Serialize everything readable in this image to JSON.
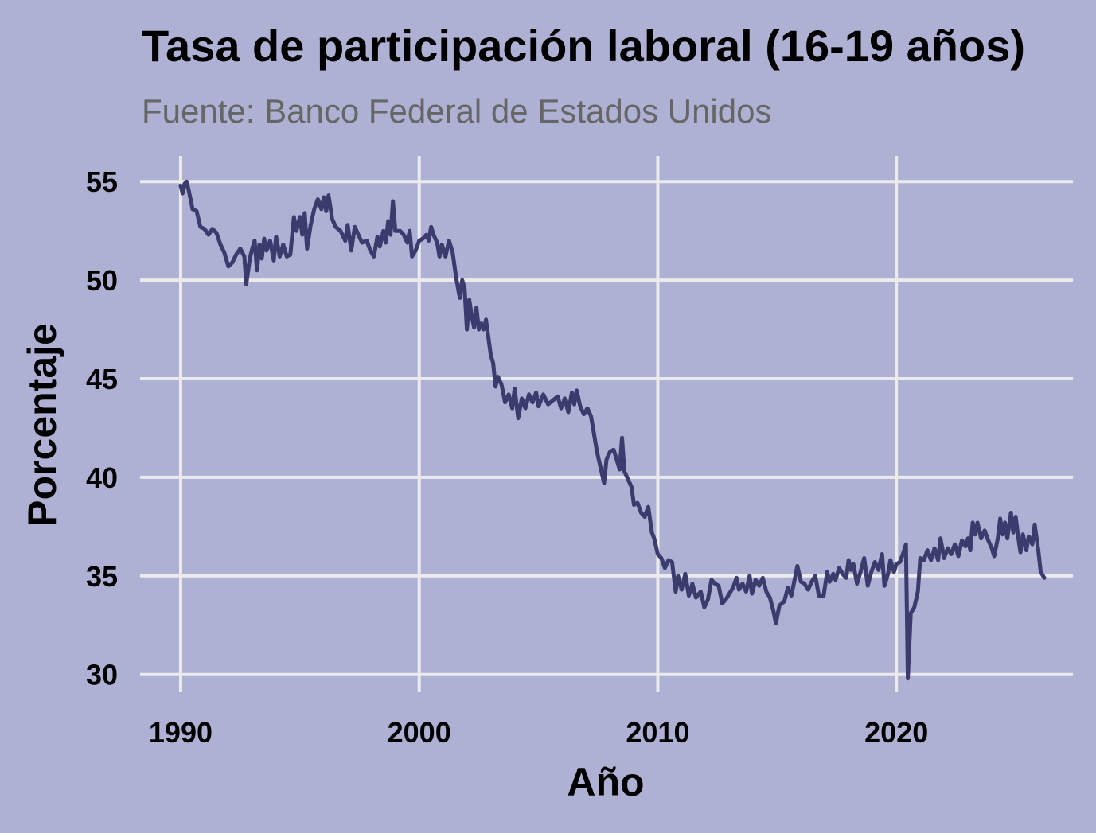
{
  "colors": {
    "background": "#AFB1D4",
    "grid": "#EBEBEB",
    "line": "#3B3B6D",
    "subtitle": "#666666"
  },
  "chart_data": {
    "type": "line",
    "title": "Tasa de participación laboral (16-19 años)",
    "subtitle": "Fuente: Banco Federal de Estados Unidos",
    "xlabel": "Año",
    "ylabel": "Porcentaje",
    "xlim": [
      1988.3,
      2027.4
    ],
    "ylim": [
      29.1,
      56.3
    ],
    "x_ticks": [
      1990,
      2000,
      2010,
      2020
    ],
    "y_ticks": [
      30,
      35,
      40,
      45,
      50,
      55
    ],
    "grid": true,
    "legend": "none",
    "series": [
      {
        "points": [
          [
            1990.0,
            54.8
          ],
          [
            1990.08,
            54.4
          ],
          [
            1990.17,
            54.9
          ],
          [
            1990.25,
            55.0
          ],
          [
            1990.33,
            54.6
          ],
          [
            1990.42,
            54.1
          ],
          [
            1990.5,
            53.6
          ],
          [
            1990.67,
            53.5
          ],
          [
            1990.83,
            52.7
          ],
          [
            1991.0,
            52.6
          ],
          [
            1991.17,
            52.3
          ],
          [
            1991.33,
            52.6
          ],
          [
            1991.5,
            52.4
          ],
          [
            1991.67,
            51.8
          ],
          [
            1991.83,
            51.4
          ],
          [
            1992.0,
            50.7
          ],
          [
            1992.17,
            50.9
          ],
          [
            1992.33,
            51.3
          ],
          [
            1992.5,
            51.6
          ],
          [
            1992.67,
            51.2
          ],
          [
            1992.75,
            49.8
          ],
          [
            1992.9,
            51.1
          ],
          [
            1993.0,
            51.6
          ],
          [
            1993.1,
            52.0
          ],
          [
            1993.2,
            50.5
          ],
          [
            1993.3,
            51.8
          ],
          [
            1993.4,
            51.1
          ],
          [
            1993.5,
            52.1
          ],
          [
            1993.6,
            51.5
          ],
          [
            1993.75,
            52.0
          ],
          [
            1993.9,
            51.0
          ],
          [
            1994.0,
            52.2
          ],
          [
            1994.15,
            51.2
          ],
          [
            1994.3,
            51.8
          ],
          [
            1994.45,
            51.2
          ],
          [
            1994.6,
            51.3
          ],
          [
            1994.75,
            53.2
          ],
          [
            1994.85,
            52.5
          ],
          [
            1995.0,
            53.2
          ],
          [
            1995.1,
            52.3
          ],
          [
            1995.2,
            53.4
          ],
          [
            1995.3,
            51.6
          ],
          [
            1995.45,
            52.8
          ],
          [
            1995.6,
            53.6
          ],
          [
            1995.75,
            54.1
          ],
          [
            1995.9,
            53.6
          ],
          [
            1996.0,
            54.2
          ],
          [
            1996.1,
            53.5
          ],
          [
            1996.2,
            54.3
          ],
          [
            1996.35,
            53.1
          ],
          [
            1996.5,
            52.7
          ],
          [
            1996.7,
            52.5
          ],
          [
            1996.9,
            52.0
          ],
          [
            1997.0,
            52.8
          ],
          [
            1997.15,
            51.5
          ],
          [
            1997.3,
            52.7
          ],
          [
            1997.45,
            52.3
          ],
          [
            1997.6,
            51.9
          ],
          [
            1997.8,
            52.0
          ],
          [
            1997.95,
            51.5
          ],
          [
            1998.1,
            51.2
          ],
          [
            1998.25,
            52.2
          ],
          [
            1998.35,
            51.7
          ],
          [
            1998.5,
            52.5
          ],
          [
            1998.6,
            51.9
          ],
          [
            1998.7,
            53.0
          ],
          [
            1998.8,
            52.3
          ],
          [
            1998.9,
            54.0
          ],
          [
            1999.0,
            52.5
          ],
          [
            1999.2,
            52.5
          ],
          [
            1999.35,
            52.3
          ],
          [
            1999.5,
            51.9
          ],
          [
            1999.6,
            52.5
          ],
          [
            1999.7,
            51.2
          ],
          [
            1999.85,
            51.5
          ],
          [
            2000.0,
            52.0
          ],
          [
            2000.15,
            52.1
          ],
          [
            2000.3,
            52.3
          ],
          [
            2000.4,
            52.0
          ],
          [
            2000.5,
            52.7
          ],
          [
            2000.6,
            52.3
          ],
          [
            2000.75,
            51.9
          ],
          [
            2000.85,
            51.2
          ],
          [
            2000.95,
            51.8
          ],
          [
            2001.1,
            51.2
          ],
          [
            2001.25,
            52.0
          ],
          [
            2001.4,
            51.4
          ],
          [
            2001.55,
            50.1
          ],
          [
            2001.7,
            49.1
          ],
          [
            2001.8,
            50.0
          ],
          [
            2001.9,
            49.6
          ],
          [
            2002.0,
            47.5
          ],
          [
            2002.1,
            49.0
          ],
          [
            2002.2,
            48.2
          ],
          [
            2002.3,
            47.6
          ],
          [
            2002.4,
            48.6
          ],
          [
            2002.5,
            47.5
          ],
          [
            2002.6,
            47.8
          ],
          [
            2002.7,
            47.5
          ],
          [
            2002.8,
            48.0
          ],
          [
            2002.9,
            47.1
          ],
          [
            2003.0,
            46.2
          ],
          [
            2003.1,
            45.8
          ],
          [
            2003.2,
            44.6
          ],
          [
            2003.3,
            45.1
          ],
          [
            2003.45,
            44.7
          ],
          [
            2003.6,
            43.8
          ],
          [
            2003.75,
            44.2
          ],
          [
            2003.9,
            43.5
          ],
          [
            2004.0,
            44.5
          ],
          [
            2004.15,
            43.0
          ],
          [
            2004.3,
            44.0
          ],
          [
            2004.45,
            43.5
          ],
          [
            2004.6,
            44.2
          ],
          [
            2004.75,
            43.8
          ],
          [
            2004.9,
            44.3
          ],
          [
            2005.0,
            43.6
          ],
          [
            2005.2,
            44.2
          ],
          [
            2005.4,
            43.7
          ],
          [
            2005.6,
            43.9
          ],
          [
            2005.8,
            44.1
          ],
          [
            2005.95,
            43.5
          ],
          [
            2006.1,
            44.0
          ],
          [
            2006.25,
            43.3
          ],
          [
            2006.4,
            44.3
          ],
          [
            2006.5,
            43.7
          ],
          [
            2006.6,
            44.4
          ],
          [
            2006.75,
            43.6
          ],
          [
            2006.9,
            43.2
          ],
          [
            2007.05,
            43.5
          ],
          [
            2007.2,
            43.1
          ],
          [
            2007.3,
            42.4
          ],
          [
            2007.45,
            41.3
          ],
          [
            2007.6,
            40.5
          ],
          [
            2007.75,
            39.7
          ],
          [
            2007.85,
            40.9
          ],
          [
            2008.0,
            41.3
          ],
          [
            2008.15,
            41.4
          ],
          [
            2008.3,
            40.8
          ],
          [
            2008.4,
            40.4
          ],
          [
            2008.5,
            42.0
          ],
          [
            2008.6,
            40.3
          ],
          [
            2008.75,
            39.9
          ],
          [
            2008.9,
            39.5
          ],
          [
            2009.0,
            38.6
          ],
          [
            2009.15,
            38.7
          ],
          [
            2009.3,
            38.2
          ],
          [
            2009.45,
            38.0
          ],
          [
            2009.6,
            38.5
          ],
          [
            2009.75,
            37.2
          ],
          [
            2009.85,
            36.9
          ],
          [
            2010.0,
            36.1
          ],
          [
            2010.15,
            35.9
          ],
          [
            2010.3,
            35.4
          ],
          [
            2010.45,
            35.8
          ],
          [
            2010.6,
            35.7
          ],
          [
            2010.75,
            34.2
          ],
          [
            2010.85,
            35.0
          ],
          [
            2011.0,
            34.3
          ],
          [
            2011.15,
            35.1
          ],
          [
            2011.3,
            34.0
          ],
          [
            2011.45,
            34.6
          ],
          [
            2011.6,
            33.9
          ],
          [
            2011.8,
            34.2
          ],
          [
            2011.95,
            33.4
          ],
          [
            2012.1,
            33.8
          ],
          [
            2012.25,
            34.8
          ],
          [
            2012.4,
            34.6
          ],
          [
            2012.55,
            34.5
          ],
          [
            2012.7,
            33.6
          ],
          [
            2012.85,
            33.8
          ],
          [
            2013.0,
            34.1
          ],
          [
            2013.15,
            34.4
          ],
          [
            2013.3,
            34.9
          ],
          [
            2013.4,
            34.3
          ],
          [
            2013.55,
            34.6
          ],
          [
            2013.7,
            34.2
          ],
          [
            2013.85,
            35.0
          ],
          [
            2013.95,
            34.1
          ],
          [
            2014.1,
            34.8
          ],
          [
            2014.25,
            34.5
          ],
          [
            2014.4,
            34.9
          ],
          [
            2014.55,
            34.2
          ],
          [
            2014.7,
            33.9
          ],
          [
            2014.85,
            33.2
          ],
          [
            2014.95,
            32.6
          ],
          [
            2015.1,
            33.5
          ],
          [
            2015.3,
            33.7
          ],
          [
            2015.45,
            34.4
          ],
          [
            2015.6,
            34.0
          ],
          [
            2015.75,
            34.9
          ],
          [
            2015.85,
            35.5
          ],
          [
            2016.0,
            34.7
          ],
          [
            2016.15,
            34.6
          ],
          [
            2016.3,
            34.3
          ],
          [
            2016.45,
            34.7
          ],
          [
            2016.6,
            35.0
          ],
          [
            2016.75,
            34.0
          ],
          [
            2016.95,
            34.0
          ],
          [
            2017.1,
            35.2
          ],
          [
            2017.2,
            34.7
          ],
          [
            2017.35,
            35.1
          ],
          [
            2017.45,
            34.8
          ],
          [
            2017.6,
            35.4
          ],
          [
            2017.75,
            35.1
          ],
          [
            2017.9,
            34.9
          ],
          [
            2018.0,
            35.8
          ],
          [
            2018.1,
            35.3
          ],
          [
            2018.2,
            35.6
          ],
          [
            2018.35,
            34.6
          ],
          [
            2018.5,
            35.2
          ],
          [
            2018.65,
            35.9
          ],
          [
            2018.8,
            34.5
          ],
          [
            2018.95,
            35.2
          ],
          [
            2019.1,
            35.7
          ],
          [
            2019.25,
            35.3
          ],
          [
            2019.4,
            36.1
          ],
          [
            2019.5,
            34.5
          ],
          [
            2019.65,
            35.1
          ],
          [
            2019.75,
            35.8
          ],
          [
            2019.9,
            35.2
          ],
          [
            2020.0,
            35.6
          ],
          [
            2020.15,
            35.7
          ],
          [
            2020.3,
            36.2
          ],
          [
            2020.4,
            36.6
          ],
          [
            2020.48,
            29.8
          ],
          [
            2020.6,
            33.1
          ],
          [
            2020.75,
            33.4
          ],
          [
            2020.9,
            34.2
          ],
          [
            2021.0,
            35.9
          ],
          [
            2021.15,
            35.8
          ],
          [
            2021.3,
            36.3
          ],
          [
            2021.45,
            35.8
          ],
          [
            2021.6,
            36.4
          ],
          [
            2021.75,
            35.8
          ],
          [
            2021.85,
            36.9
          ],
          [
            2022.0,
            35.9
          ],
          [
            2022.15,
            36.4
          ],
          [
            2022.3,
            36.1
          ],
          [
            2022.45,
            36.6
          ],
          [
            2022.6,
            36.0
          ],
          [
            2022.75,
            36.8
          ],
          [
            2022.9,
            36.5
          ],
          [
            2023.0,
            36.9
          ],
          [
            2023.1,
            36.3
          ],
          [
            2023.2,
            37.7
          ],
          [
            2023.3,
            37.1
          ],
          [
            2023.4,
            37.7
          ],
          [
            2023.55,
            36.9
          ],
          [
            2023.7,
            37.3
          ],
          [
            2023.85,
            36.8
          ],
          [
            2024.0,
            36.4
          ],
          [
            2024.1,
            36.0
          ],
          [
            2024.25,
            36.9
          ],
          [
            2024.35,
            37.9
          ],
          [
            2024.45,
            37.1
          ],
          [
            2024.55,
            37.7
          ],
          [
            2024.65,
            36.9
          ],
          [
            2024.8,
            38.2
          ],
          [
            2024.9,
            37.2
          ],
          [
            2025.0,
            38.0
          ],
          [
            2025.1,
            37.0
          ],
          [
            2025.2,
            36.2
          ],
          [
            2025.3,
            37.1
          ],
          [
            2025.45,
            36.3
          ],
          [
            2025.55,
            37.0
          ],
          [
            2025.7,
            36.6
          ],
          [
            2025.8,
            37.6
          ],
          [
            2025.95,
            36.3
          ],
          [
            2026.05,
            35.2
          ],
          [
            2026.2,
            34.9
          ]
        ]
      }
    ]
  }
}
